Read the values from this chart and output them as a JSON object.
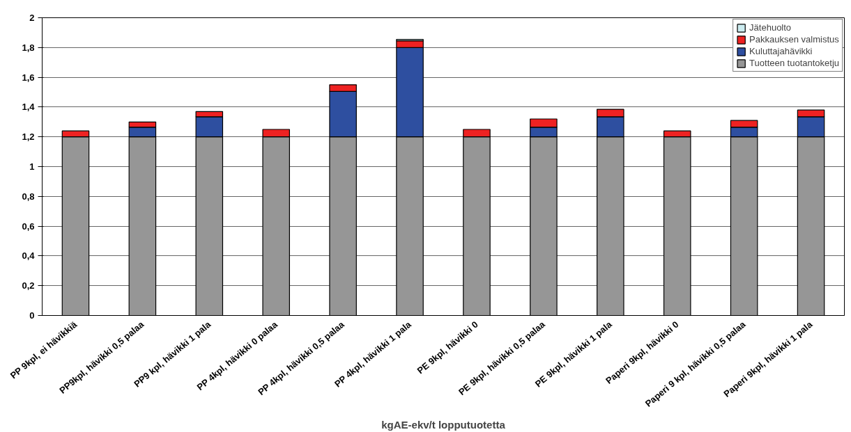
{
  "chart_data": {
    "type": "bar",
    "stacked": true,
    "xlabel": "kgAE-ekv/t lopputuotetta",
    "categories": [
      "PP 9kpl, ei hävikkiä",
      "PP9kpl, hävikki 0,5 palaa",
      "PP9 kpl, hävikki 1 pala",
      "PP 4kpl, hävikki 0 palaa",
      "PP 4kpl, hävikki 0,5 palaa",
      "PP 4kpl, hävikki 1 pala",
      "PE 9kpl, hävikki 0",
      "PE 9kpl, hävikki 0,5 palaa",
      "PE 9kpl, hävikki 1 pala",
      "Paperi 9kpl, hävikki 0",
      "Paperi 9 kpl, hävikki 0,5 palaa",
      "Paperi 9kpl, hävikki 1 pala"
    ],
    "series": [
      {
        "name": "Tuotteen tuotantoketju",
        "color": "#969696",
        "values": [
          1.2,
          1.2,
          1.2,
          1.2,
          1.2,
          1.2,
          1.2,
          1.2,
          1.2,
          1.2,
          1.2,
          1.2
        ]
      },
      {
        "name": "Kuluttajahävikki",
        "color": "#2e4fa0",
        "values": [
          null,
          0.065,
          0.135,
          null,
          0.305,
          0.6,
          null,
          0.065,
          0.135,
          null,
          0.065,
          0.135
        ]
      },
      {
        "name": "Pakkauksen valmistus",
        "color": "#ee2222",
        "values": [
          0.04,
          0.035,
          0.035,
          0.05,
          0.045,
          0.045,
          0.05,
          0.055,
          0.05,
          0.04,
          0.045,
          0.045
        ]
      },
      {
        "name": "Jätehuolto",
        "color": "#ccecf0",
        "values": [
          null,
          null,
          null,
          null,
          null,
          0.01,
          null,
          null,
          null,
          null,
          null,
          null
        ]
      }
    ],
    "ylim": [
      0,
      2
    ],
    "yticks": [
      0,
      {
        "value": 0.2,
        "label": "0,2"
      },
      {
        "value": 0.4,
        "label": "0,4"
      },
      {
        "value": 0.6,
        "label": "0,6"
      },
      {
        "value": 0.8,
        "label": "0,8"
      },
      1,
      {
        "value": 1.2,
        "label": "1,2"
      },
      {
        "value": 1.4,
        "label": "1,4"
      },
      {
        "value": 1.6,
        "label": "1,6"
      },
      {
        "value": 1.8,
        "label": "1,8"
      },
      2
    ],
    "grid": "y",
    "legend": "top right"
  }
}
